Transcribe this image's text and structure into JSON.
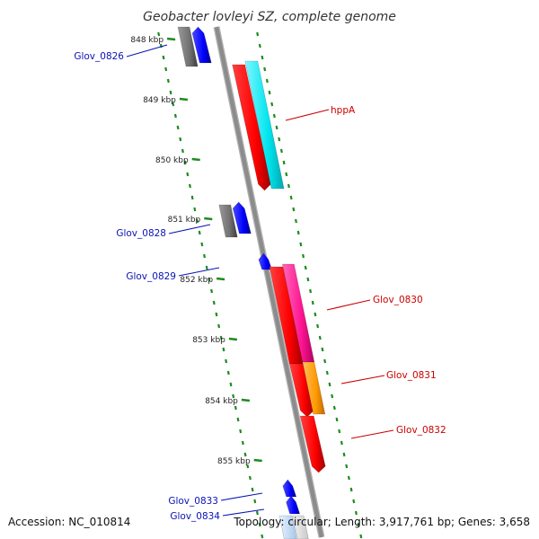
{
  "diagram": {
    "title": "Geobacter lovleyi SZ, complete genome",
    "accession": "Accession: NC_010814",
    "topology": "Topology: circular; Length: 3,917,761 bp; Genes: 3,658",
    "ticks": [
      "848 kbp",
      "849 kbp",
      "850 kbp",
      "851 kbp",
      "852 kbp",
      "853 kbp",
      "854 kbp",
      "855 kbp"
    ],
    "colors": {
      "backbone": "#8c8c8c",
      "grid": "#1f8a1f",
      "forward_label": "#cc0000",
      "reverse_label": "#0a14b4",
      "cds_red": "#ff0000",
      "cds_blue": "#0000ff",
      "cds_gray": "#707070",
      "cds_cyan": "#00e5ee",
      "cds_pink": "#ff1493",
      "cds_orange": "#ff9900"
    },
    "genes": [
      {
        "label": "Glov_0826",
        "strand": "reverse"
      },
      {
        "label": "hppA",
        "strand": "forward"
      },
      {
        "label": "Glov_0828",
        "strand": "reverse"
      },
      {
        "label": "Glov_0829",
        "strand": "reverse"
      },
      {
        "label": "Glov_0830",
        "strand": "forward"
      },
      {
        "label": "Glov_0831",
        "strand": "forward"
      },
      {
        "label": "Glov_0832",
        "strand": "forward"
      },
      {
        "label": "Glov_0833",
        "strand": "reverse"
      },
      {
        "label": "Glov_0834",
        "strand": "reverse"
      }
    ]
  }
}
